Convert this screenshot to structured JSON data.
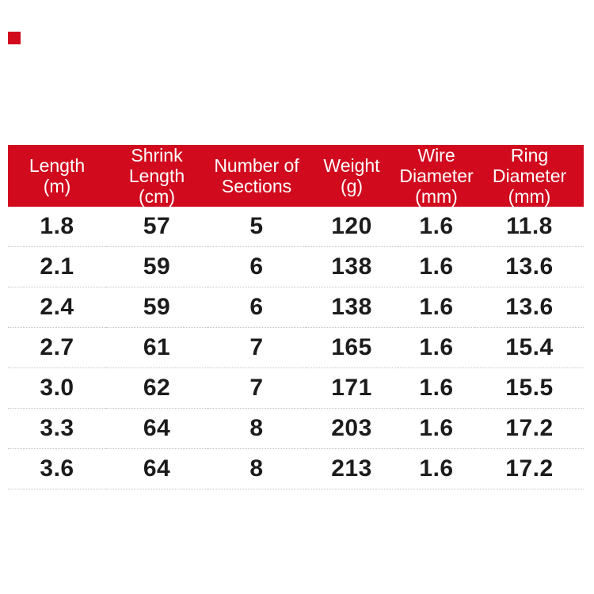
{
  "colors": {
    "accent_red": "#d10a1e",
    "header_text": "#ffffff",
    "body_text": "#1c1c1c",
    "divider": "#c6c6c6",
    "background": "#ffffff"
  },
  "corner_mark": {
    "color": "#d10a1e"
  },
  "chart_data": {
    "type": "table",
    "title": "",
    "columns": [
      "Length (m)",
      "Shrink Length (cm)",
      "Number of Sections",
      "Weight (g)",
      "Wire Diameter (mm)",
      "Ring Diameter (mm)"
    ],
    "columns_display": [
      "Length\n(m)",
      "Shrink\nLength\n(cm)",
      "Number of\nSections",
      "Weight\n(g)",
      "Wire\nDiameter\n(mm)",
      "Ring\nDiameter\n(mm)"
    ],
    "rows": [
      [
        "1.8",
        "57",
        "5",
        "120",
        "1.6",
        "11.8"
      ],
      [
        "2.1",
        "59",
        "6",
        "138",
        "1.6",
        "13.6"
      ],
      [
        "2.4",
        "59",
        "6",
        "138",
        "1.6",
        "13.6"
      ],
      [
        "2.7",
        "61",
        "7",
        "165",
        "1.6",
        "15.4"
      ],
      [
        "3.0",
        "62",
        "7",
        "171",
        "1.6",
        "15.5"
      ],
      [
        "3.3",
        "64",
        "8",
        "203",
        "1.6",
        "17.2"
      ],
      [
        "3.6",
        "64",
        "8",
        "213",
        "1.6",
        "17.2"
      ]
    ],
    "header_bg": "#d10a1e",
    "header_text_color": "#ffffff",
    "grid": "dotted-row-dividers",
    "legend": "none"
  }
}
